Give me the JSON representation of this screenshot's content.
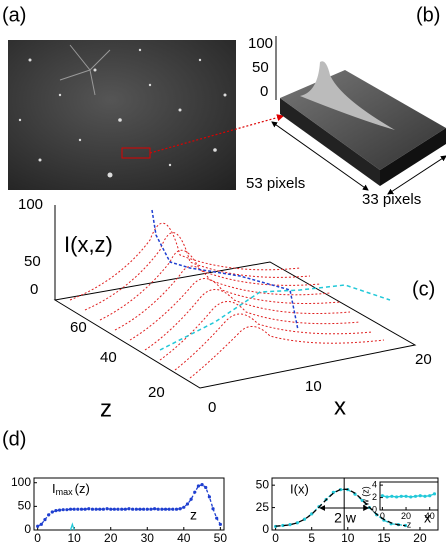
{
  "panels": {
    "a": "(a)",
    "b": "(b)",
    "c": "(c)",
    "d": "(d)"
  },
  "surface": {
    "zticks": [
      100,
      50,
      0
    ],
    "depth_label": "53 pixels",
    "width_label": "33 pixels"
  },
  "scatter3d": {
    "title": "I(x,z)",
    "iticks": [
      100,
      50,
      0
    ],
    "zticks": [
      60,
      40,
      20
    ],
    "z_label": "z",
    "xticks": [
      0,
      10,
      20
    ],
    "x_label": "x"
  },
  "chart_data": [
    {
      "type": "line",
      "title": "I",
      "title_sub": "max",
      "title_suffix": "(z)",
      "annotation": "z",
      "xlim": [
        -1,
        51
      ],
      "ylim": [
        0,
        110
      ],
      "xticks": [
        0,
        10,
        20,
        30,
        40,
        50
      ],
      "yticks": [
        0,
        50,
        100
      ],
      "series": [
        {
          "color": "#1f3fd0",
          "dash": "3,2",
          "marker": true,
          "x": [
            0,
            1,
            2,
            3,
            4,
            5,
            6,
            7,
            8,
            9,
            10,
            11,
            12,
            13,
            14,
            15,
            16,
            17,
            18,
            19,
            20,
            21,
            22,
            23,
            24,
            25,
            26,
            27,
            28,
            29,
            30,
            31,
            32,
            33,
            34,
            35,
            36,
            37,
            38,
            39,
            40,
            41,
            42,
            43,
            44,
            45,
            46,
            47,
            48,
            49,
            50
          ],
          "values": [
            8,
            12,
            22,
            32,
            38,
            41,
            42,
            43,
            43,
            44,
            44,
            44,
            44,
            44,
            45,
            44,
            44,
            44,
            44,
            45,
            44,
            44,
            44,
            44,
            44,
            45,
            44,
            44,
            44,
            44,
            44,
            44,
            45,
            44,
            44,
            44,
            44,
            44,
            44,
            45,
            48,
            55,
            65,
            80,
            93,
            96,
            90,
            70,
            45,
            25,
            12
          ]
        },
        {
          "color": "#22c8d8",
          "dash": "",
          "marker": false,
          "x": [
            9,
            9.5,
            10
          ],
          "values": [
            0,
            12,
            0
          ]
        }
      ]
    },
    {
      "type": "line",
      "title": "I(x)",
      "annotation": "2 w",
      "x_label": "x",
      "vline": 9.5,
      "xlim": [
        -0.5,
        22.5
      ],
      "ylim": [
        0,
        58
      ],
      "xticks": [
        0,
        5,
        10,
        15,
        20
      ],
      "yticks": [
        0,
        25,
        50
      ],
      "series": [
        {
          "color": "#22c8d8",
          "dash": "4,3",
          "marker": true,
          "x": [
            0,
            1,
            2,
            3,
            4,
            5,
            6,
            7,
            8,
            9,
            10,
            11,
            12,
            13,
            14,
            15,
            16,
            17,
            18
          ],
          "values": [
            4,
            5,
            6,
            8,
            12,
            18,
            26,
            34,
            42,
            45,
            45,
            40,
            33,
            25,
            17,
            11,
            7,
            6,
            5
          ]
        },
        {
          "color": "#000000",
          "dash": "5,3",
          "marker": false,
          "x": [
            0,
            1,
            2,
            3,
            4,
            5,
            6,
            7,
            8,
            9,
            10,
            11,
            12,
            13,
            14,
            15,
            16,
            17,
            18
          ],
          "values": [
            4.3,
            4.8,
            5.8,
            8.0,
            11.8,
            17.6,
            25.3,
            33.7,
            41.1,
            45.4,
            45.4,
            41.1,
            33.7,
            25.3,
            17.6,
            11.8,
            8.0,
            5.8,
            4.8
          ]
        }
      ]
    },
    {
      "type": "line",
      "x_label": "z",
      "y_label": "w (z)",
      "xlim": [
        -2,
        47
      ],
      "ylim": [
        0,
        4.5
      ],
      "xticks": [
        0,
        20,
        40
      ],
      "yticks": [
        0,
        2,
        4
      ],
      "series": [
        {
          "color": "#22c8d8",
          "dash": "",
          "marker": true,
          "x": [
            0,
            4,
            8,
            12,
            16,
            20,
            24,
            28,
            32,
            36,
            40,
            44
          ],
          "values": [
            2.3,
            2.1,
            2.2,
            2.1,
            2.2,
            2.2,
            2.1,
            2.2,
            2.3,
            2.2,
            2.3,
            2.6
          ]
        }
      ]
    }
  ]
}
